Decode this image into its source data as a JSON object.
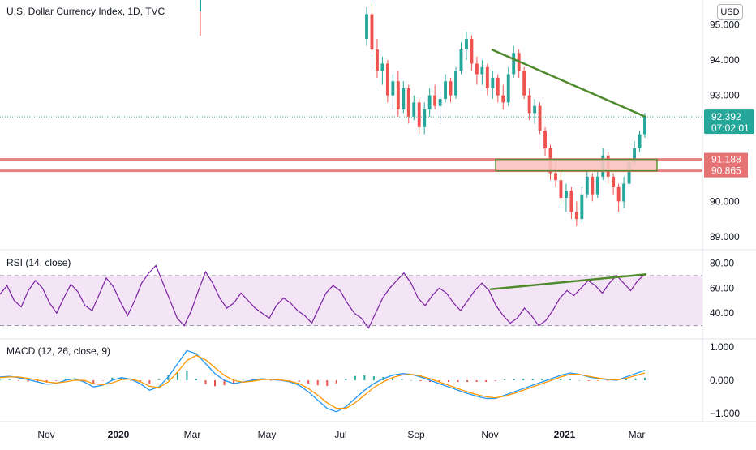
{
  "title": "U.S. Dollar Currency Index, 1D, TVC",
  "currency_button": "USD",
  "rsi_title": "RSI (14, close)",
  "macd_title": "MACD (12, 26, close, 9)",
  "colors": {
    "up": "#26a69a",
    "down": "#ef5350",
    "trendline": "#4f8a2a",
    "zone": "#e57373",
    "rsi": "#7b1fa2",
    "rsi_band": "#f3e5f5",
    "macd": "#2196f3",
    "signal": "#ff9800",
    "last_price": "#26a69a"
  },
  "chart_data": {
    "type": "candlestick",
    "x_ticks": [
      "Nov",
      "2020",
      "Mar",
      "May",
      "Jul",
      "Sep",
      "Nov",
      "2021",
      "Mar"
    ],
    "bold_ticks": [
      "2020",
      "2021"
    ],
    "price_axis": [
      "95.000",
      "94.000",
      "93.000",
      "90.000",
      "89.000"
    ],
    "price_ylim": [
      88.7,
      95.7
    ],
    "last_price": {
      "value": "92.392",
      "countdown": "07:02:01"
    },
    "zone_lines": [
      {
        "label": "91.188",
        "value": 91.188
      },
      {
        "label": "90.865",
        "value": 90.865
      }
    ],
    "candles": [
      {
        "o": 94.6,
        "h": 95.5,
        "l": 94.4,
        "c": 95.3
      },
      {
        "o": 95.3,
        "h": 95.6,
        "l": 94.2,
        "c": 94.3
      },
      {
        "o": 94.3,
        "h": 94.6,
        "l": 93.5,
        "c": 93.7
      },
      {
        "o": 93.7,
        "h": 94.1,
        "l": 93.3,
        "c": 93.9
      },
      {
        "o": 93.9,
        "h": 94.0,
        "l": 92.8,
        "c": 93.0
      },
      {
        "o": 93.0,
        "h": 93.6,
        "l": 92.6,
        "c": 93.4
      },
      {
        "o": 93.4,
        "h": 93.7,
        "l": 92.4,
        "c": 92.6
      },
      {
        "o": 92.6,
        "h": 93.4,
        "l": 92.5,
        "c": 93.2
      },
      {
        "o": 93.2,
        "h": 93.3,
        "l": 92.2,
        "c": 92.4
      },
      {
        "o": 92.4,
        "h": 93.0,
        "l": 92.3,
        "c": 92.8
      },
      {
        "o": 92.8,
        "h": 92.9,
        "l": 91.9,
        "c": 92.1
      },
      {
        "o": 92.1,
        "h": 92.8,
        "l": 91.9,
        "c": 92.6
      },
      {
        "o": 92.6,
        "h": 93.2,
        "l": 92.4,
        "c": 93.0
      },
      {
        "o": 93.0,
        "h": 93.3,
        "l": 92.6,
        "c": 92.7
      },
      {
        "o": 92.7,
        "h": 93.1,
        "l": 92.2,
        "c": 92.9
      },
      {
        "o": 92.9,
        "h": 93.6,
        "l": 92.8,
        "c": 93.4
      },
      {
        "o": 93.4,
        "h": 93.5,
        "l": 92.8,
        "c": 93.0
      },
      {
        "o": 93.0,
        "h": 93.8,
        "l": 92.9,
        "c": 93.7
      },
      {
        "o": 93.7,
        "h": 94.5,
        "l": 93.6,
        "c": 94.3
      },
      {
        "o": 94.3,
        "h": 94.8,
        "l": 94.0,
        "c": 94.6
      },
      {
        "o": 94.6,
        "h": 94.7,
        "l": 93.7,
        "c": 93.9
      },
      {
        "o": 93.9,
        "h": 94.1,
        "l": 93.3,
        "c": 93.6
      },
      {
        "o": 93.6,
        "h": 94.0,
        "l": 93.3,
        "c": 93.8
      },
      {
        "o": 93.8,
        "h": 93.9,
        "l": 93.0,
        "c": 93.2
      },
      {
        "o": 93.2,
        "h": 93.7,
        "l": 92.9,
        "c": 93.5
      },
      {
        "o": 93.5,
        "h": 93.6,
        "l": 92.8,
        "c": 93.0
      },
      {
        "o": 93.0,
        "h": 93.3,
        "l": 92.6,
        "c": 92.8
      },
      {
        "o": 92.8,
        "h": 93.8,
        "l": 92.7,
        "c": 93.6
      },
      {
        "o": 93.6,
        "h": 94.4,
        "l": 93.5,
        "c": 94.2
      },
      {
        "o": 94.2,
        "h": 94.3,
        "l": 93.5,
        "c": 93.7
      },
      {
        "o": 93.7,
        "h": 93.8,
        "l": 92.9,
        "c": 93.0
      },
      {
        "o": 93.0,
        "h": 93.2,
        "l": 92.3,
        "c": 92.5
      },
      {
        "o": 92.5,
        "h": 92.9,
        "l": 92.2,
        "c": 92.7
      },
      {
        "o": 92.7,
        "h": 92.8,
        "l": 91.9,
        "c": 92.0
      },
      {
        "o": 92.0,
        "h": 92.1,
        "l": 91.3,
        "c": 91.5
      },
      {
        "o": 91.5,
        "h": 91.6,
        "l": 90.6,
        "c": 90.8
      },
      {
        "o": 90.8,
        "h": 91.2,
        "l": 90.4,
        "c": 90.6
      },
      {
        "o": 90.6,
        "h": 90.8,
        "l": 89.9,
        "c": 90.1
      },
      {
        "o": 90.1,
        "h": 90.5,
        "l": 89.7,
        "c": 90.3
      },
      {
        "o": 90.3,
        "h": 90.4,
        "l": 89.5,
        "c": 89.7
      },
      {
        "o": 89.7,
        "h": 90.0,
        "l": 89.3,
        "c": 89.5
      },
      {
        "o": 89.5,
        "h": 90.4,
        "l": 89.4,
        "c": 90.2
      },
      {
        "o": 90.2,
        "h": 90.9,
        "l": 90.1,
        "c": 90.7
      },
      {
        "o": 90.7,
        "h": 90.8,
        "l": 90.0,
        "c": 90.2
      },
      {
        "o": 90.2,
        "h": 90.9,
        "l": 90.1,
        "c": 90.7
      },
      {
        "o": 90.7,
        "h": 91.5,
        "l": 90.6,
        "c": 91.3
      },
      {
        "o": 91.3,
        "h": 91.4,
        "l": 90.5,
        "c": 90.7
      },
      {
        "o": 90.7,
        "h": 90.8,
        "l": 90.2,
        "c": 90.4
      },
      {
        "o": 90.4,
        "h": 90.5,
        "l": 89.7,
        "c": 90.0
      },
      {
        "o": 90.0,
        "h": 90.7,
        "l": 89.8,
        "c": 90.5
      },
      {
        "o": 90.5,
        "h": 91.2,
        "l": 90.4,
        "c": 91.1
      },
      {
        "o": 91.1,
        "h": 91.7,
        "l": 91.0,
        "c": 91.5
      },
      {
        "o": 91.5,
        "h": 92.0,
        "l": 91.4,
        "c": 91.9
      },
      {
        "o": 91.9,
        "h": 92.5,
        "l": 91.8,
        "c": 92.4
      }
    ],
    "rsi": {
      "axis": [
        "80.00",
        "60.00",
        "40.00"
      ],
      "ylim": [
        22,
        88
      ],
      "band": [
        30,
        70
      ],
      "values": [
        55,
        62,
        50,
        45,
        58,
        66,
        60,
        48,
        40,
        52,
        63,
        57,
        46,
        42,
        55,
        68,
        61,
        49,
        38,
        50,
        64,
        72,
        78,
        64,
        50,
        36,
        30,
        42,
        58,
        73,
        64,
        52,
        44,
        48,
        56,
        50,
        44,
        40,
        36,
        46,
        52,
        48,
        42,
        38,
        32,
        44,
        56,
        62,
        58,
        48,
        40,
        36,
        28,
        40,
        52,
        60,
        66,
        72,
        64,
        52,
        46,
        54,
        60,
        56,
        48,
        42,
        50,
        58,
        64,
        58,
        46,
        38,
        32,
        36,
        44,
        38,
        30,
        34,
        42,
        52,
        58,
        54,
        60,
        66,
        62,
        56,
        64,
        70,
        64,
        58,
        66,
        71
      ]
    },
    "macd": {
      "axis": [
        "1.000",
        "0.000",
        "−1.000"
      ],
      "ylim": [
        -1.2,
        1.2
      ],
      "macd": [
        0.1,
        0.12,
        0.08,
        0.02,
        -0.05,
        -0.12,
        -0.1,
        0.0,
        0.05,
        -0.05,
        -0.2,
        -0.15,
        0.0,
        0.08,
        0.03,
        -0.1,
        -0.3,
        -0.2,
        0.1,
        0.5,
        0.9,
        0.8,
        0.5,
        0.2,
        0.0,
        -0.1,
        -0.05,
        0.0,
        0.05,
        0.02,
        0.0,
        -0.05,
        -0.15,
        -0.35,
        -0.6,
        -0.85,
        -0.95,
        -0.8,
        -0.55,
        -0.3,
        -0.1,
        0.05,
        0.15,
        0.2,
        0.18,
        0.1,
        0.0,
        -0.1,
        -0.2,
        -0.3,
        -0.4,
        -0.48,
        -0.55,
        -0.55,
        -0.45,
        -0.35,
        -0.25,
        -0.15,
        -0.05,
        0.05,
        0.15,
        0.22,
        0.18,
        0.1,
        0.05,
        0.02,
        0.0,
        0.1,
        0.2,
        0.3
      ],
      "signal": [
        0.08,
        0.1,
        0.1,
        0.06,
        0.01,
        -0.05,
        -0.08,
        -0.05,
        0.0,
        0.0,
        -0.1,
        -0.14,
        -0.08,
        0.02,
        0.04,
        -0.04,
        -0.18,
        -0.22,
        -0.05,
        0.25,
        0.6,
        0.75,
        0.62,
        0.38,
        0.15,
        0.0,
        -0.06,
        -0.03,
        0.02,
        0.03,
        0.01,
        -0.03,
        -0.1,
        -0.25,
        -0.45,
        -0.68,
        -0.85,
        -0.85,
        -0.68,
        -0.45,
        -0.22,
        -0.05,
        0.08,
        0.16,
        0.18,
        0.13,
        0.05,
        -0.05,
        -0.15,
        -0.25,
        -0.35,
        -0.43,
        -0.5,
        -0.53,
        -0.48,
        -0.4,
        -0.3,
        -0.2,
        -0.1,
        0.0,
        0.1,
        0.18,
        0.18,
        0.12,
        0.07,
        0.03,
        0.01,
        0.06,
        0.14,
        0.22
      ]
    }
  }
}
